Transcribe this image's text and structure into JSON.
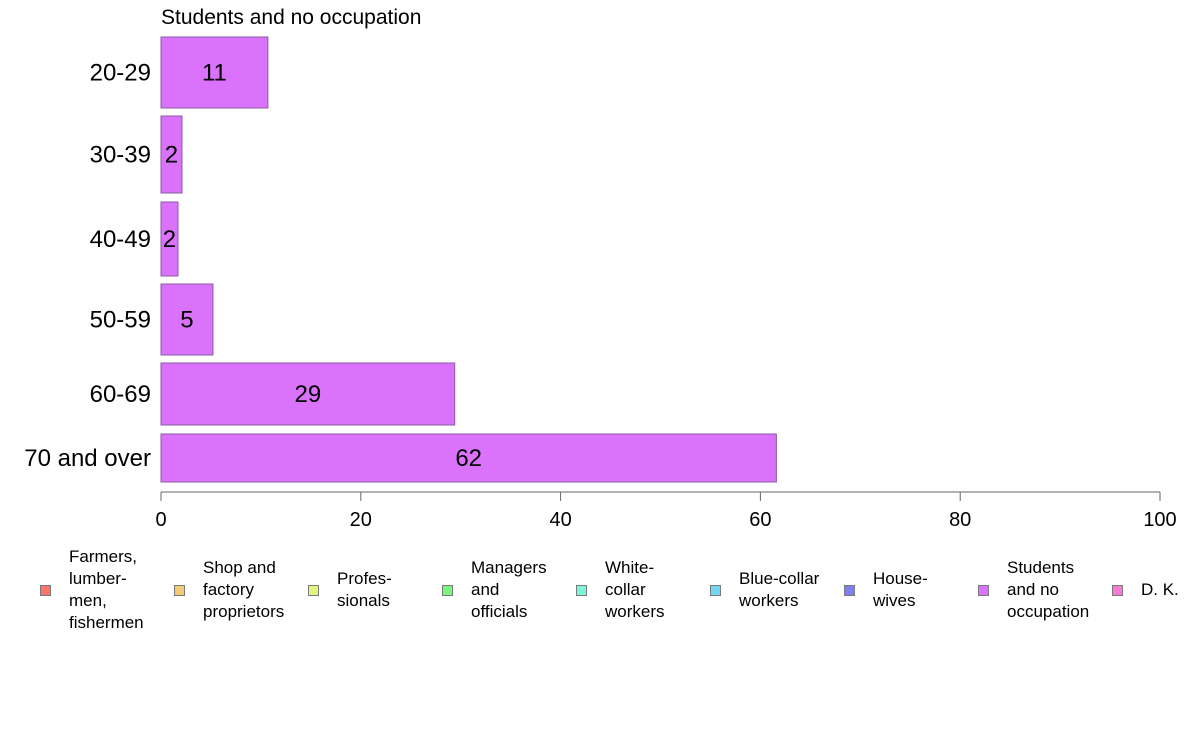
{
  "chart_data": {
    "type": "bar",
    "orientation": "horizontal",
    "title": "Students and no occupation",
    "categories": [
      "20-29",
      "30-39",
      "40-49",
      "50-59",
      "60-69",
      "70 and over"
    ],
    "values": [
      10.7,
      2.1,
      1.7,
      5.2,
      29.4,
      61.6
    ],
    "value_labels": [
      "11",
      "2",
      "2",
      "5",
      "29",
      "62"
    ],
    "xlim": [
      0,
      100
    ],
    "xticks": [
      0,
      20,
      40,
      60,
      80,
      100
    ],
    "bar_color": "#DB72FB",
    "grid": false,
    "legend_position": "bottom",
    "legend": [
      {
        "label": "Farmers,\nlumber-\nmen,\nfishermen",
        "color": "#F8766D"
      },
      {
        "label": "Shop and\nfactory\nproprietors",
        "color": "#F5CA77"
      },
      {
        "label": "Profes-\nsionals",
        "color": "#E2F57F"
      },
      {
        "label": "Managers\nand\nofficials",
        "color": "#7CF57F"
      },
      {
        "label": "White-\ncollar\nworkers",
        "color": "#7CF5D8"
      },
      {
        "label": "Blue-collar\nworkers",
        "color": "#76D4F5"
      },
      {
        "label": "House-\nwives",
        "color": "#7F7FF0"
      },
      {
        "label": "Students\nand no\noccupation",
        "color": "#DB72FB"
      },
      {
        "label": "D. K.",
        "color": "#F57CD4"
      }
    ]
  }
}
